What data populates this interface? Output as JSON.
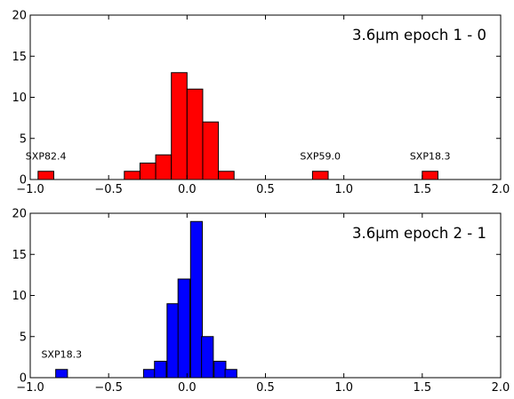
{
  "chart_data": [
    {
      "type": "bar",
      "title": "3.6μm epoch 1 - 0",
      "bin_width": 0.1,
      "bar_color": "#ff0000",
      "xlim": [
        -1.0,
        2.0
      ],
      "ylim": [
        0,
        20
      ],
      "x_ticks": [
        -1.0,
        -0.5,
        0.0,
        0.5,
        1.0,
        1.5,
        2.0
      ],
      "x_tick_labels": [
        "−1.0",
        "−0.5",
        "0.0",
        "0.5",
        "1.0",
        "1.5",
        "2.0"
      ],
      "y_ticks": [
        0,
        5,
        10,
        15,
        20
      ],
      "y_tick_labels": [
        "0",
        "5",
        "10",
        "15",
        "20"
      ],
      "bins": [
        {
          "x": -0.9,
          "count": 1
        },
        {
          "x": -0.35,
          "count": 1
        },
        {
          "x": -0.25,
          "count": 2
        },
        {
          "x": -0.15,
          "count": 3
        },
        {
          "x": -0.05,
          "count": 13
        },
        {
          "x": 0.05,
          "count": 11
        },
        {
          "x": 0.15,
          "count": 7
        },
        {
          "x": 0.25,
          "count": 1
        },
        {
          "x": 0.85,
          "count": 1
        },
        {
          "x": 1.55,
          "count": 1
        }
      ],
      "annotations": [
        {
          "text": "SXP82.4",
          "x": -0.9,
          "y": 2
        },
        {
          "text": "SXP59.0",
          "x": 0.85,
          "y": 2
        },
        {
          "text": "SXP18.3",
          "x": 1.55,
          "y": 2
        }
      ]
    },
    {
      "type": "bar",
      "title": "3.6μm epoch 2 - 1",
      "bin_width": 0.075,
      "bar_color": "#0000ff",
      "xlim": [
        -1.0,
        2.0
      ],
      "ylim": [
        0,
        20
      ],
      "x_ticks": [
        -1.0,
        -0.5,
        0.0,
        0.5,
        1.0,
        1.5,
        2.0
      ],
      "x_tick_labels": [
        "−1.0",
        "−0.5",
        "0.0",
        "0.5",
        "1.0",
        "1.5",
        "2.0"
      ],
      "y_ticks": [
        0,
        5,
        10,
        15,
        20
      ],
      "y_tick_labels": [
        "0",
        "5",
        "10",
        "15",
        "20"
      ],
      "bins": [
        {
          "x": -0.8,
          "count": 1
        },
        {
          "x": -0.24,
          "count": 1
        },
        {
          "x": -0.17,
          "count": 2
        },
        {
          "x": -0.09,
          "count": 9
        },
        {
          "x": -0.02,
          "count": 12
        },
        {
          "x": 0.06,
          "count": 19
        },
        {
          "x": 0.13,
          "count": 5
        },
        {
          "x": 0.21,
          "count": 2
        },
        {
          "x": 0.28,
          "count": 1
        }
      ],
      "annotations": [
        {
          "text": "SXP18.3",
          "x": -0.8,
          "y": 2
        }
      ]
    }
  ]
}
